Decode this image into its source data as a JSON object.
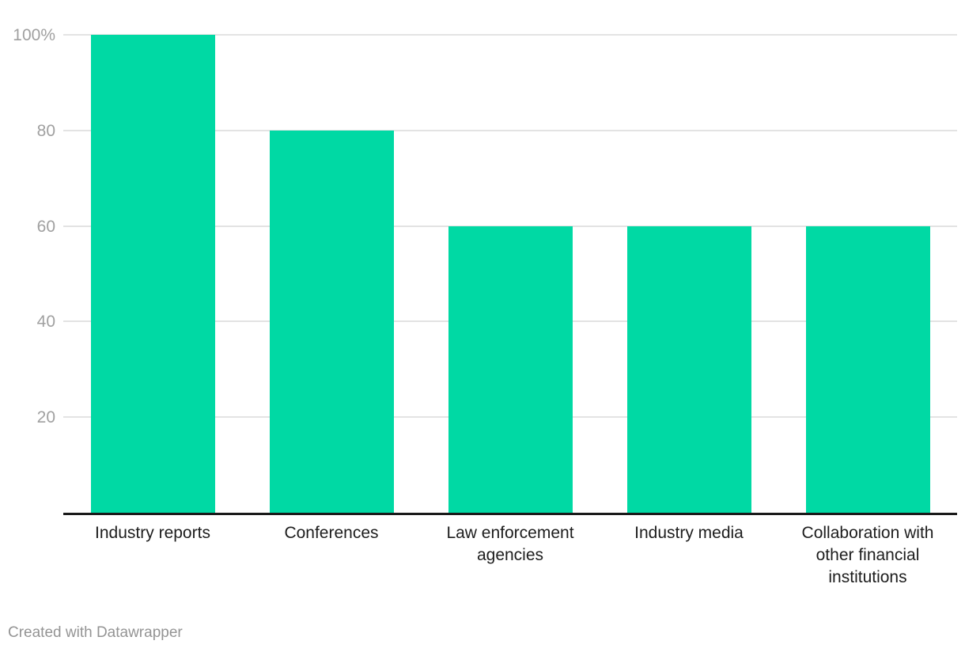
{
  "chart_data": {
    "type": "bar",
    "categories": [
      "Industry reports",
      "Conferences",
      "Law enforcement agencies",
      "Industry media",
      "Collaboration with other financial institutions"
    ],
    "values": [
      100,
      80,
      60,
      60,
      60
    ],
    "title": "",
    "xlabel": "",
    "ylabel": "",
    "ylim": [
      0,
      100
    ],
    "yticks": [
      {
        "value": 20,
        "label": "20"
      },
      {
        "value": 40,
        "label": "40"
      },
      {
        "value": 60,
        "label": "60"
      },
      {
        "value": 80,
        "label": "80"
      },
      {
        "value": 100,
        "label": "100%"
      }
    ],
    "grid": true,
    "legend": "none",
    "bar_color": "#00d9a4"
  },
  "colors": {
    "bar": "#00d9a4",
    "gridline": "#e3e3e3",
    "axis_line": "#1a1a1a",
    "tick_label": "#a0a0a0",
    "category_label": "#1d1d1d",
    "footer_text": "#949494",
    "background": "#ffffff"
  },
  "footer": {
    "credit": "Created with Datawrapper"
  }
}
